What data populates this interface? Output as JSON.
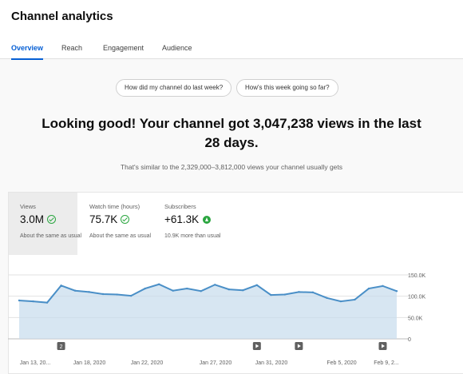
{
  "header": {
    "title": "Channel analytics",
    "tabs": [
      {
        "label": "Overview",
        "active": true
      },
      {
        "label": "Reach",
        "active": false
      },
      {
        "label": "Engagement",
        "active": false
      },
      {
        "label": "Audience",
        "active": false
      }
    ]
  },
  "prompts": {
    "last_week": "How did my channel do last week?",
    "this_week": "How's this week going so far?"
  },
  "summary": {
    "headline": "Looking good! Your channel got 3,047,238 views in the last 28 days.",
    "subline": "That's similar to the 2,329,000–3,812,000 views your channel usually gets"
  },
  "metrics": [
    {
      "label": "Views",
      "value": "3.0M",
      "note": "About the same as usual",
      "icon": "check-icon"
    },
    {
      "label": "Watch time (hours)",
      "value": "75.7K",
      "note": "About the same as usual",
      "icon": "check-icon"
    },
    {
      "label": "Subscribers",
      "value": "+61.3K",
      "note": "10.9K more than usual",
      "icon": "up-arrow-icon"
    }
  ],
  "colors": {
    "accent": "#065fd4",
    "line": "#4a8fc7",
    "area": "#c6dced",
    "positive": "#2ba640"
  },
  "chart_data": {
    "type": "area",
    "title": "",
    "xlabel": "",
    "ylabel": "",
    "ylim": [
      0,
      150000
    ],
    "yticks": [
      "0",
      "50.0K",
      "100.0K",
      "150.0K"
    ],
    "xticks": [
      "Jan 13, 20...",
      "Jan 18, 2020",
      "Jan 22, 2020",
      "Jan 27, 2020",
      "Jan 31, 2020",
      "Feb 5, 2020",
      "Feb 9, 2..."
    ],
    "series": [
      {
        "values": [
          90000,
          88000,
          85000,
          125000,
          113000,
          110000,
          105000,
          104000,
          101000,
          118000,
          128000,
          113000,
          118000,
          112000,
          127000,
          116000,
          114000,
          126000,
          103000,
          104000,
          110000,
          109000,
          96000,
          88000,
          92000,
          118000,
          124000,
          112000
        ]
      }
    ],
    "markers": [
      {
        "day": 3,
        "label": "2"
      },
      {
        "day": 17,
        "label": ""
      },
      {
        "day": 20,
        "label": ""
      },
      {
        "day": 26,
        "label": ""
      }
    ]
  }
}
